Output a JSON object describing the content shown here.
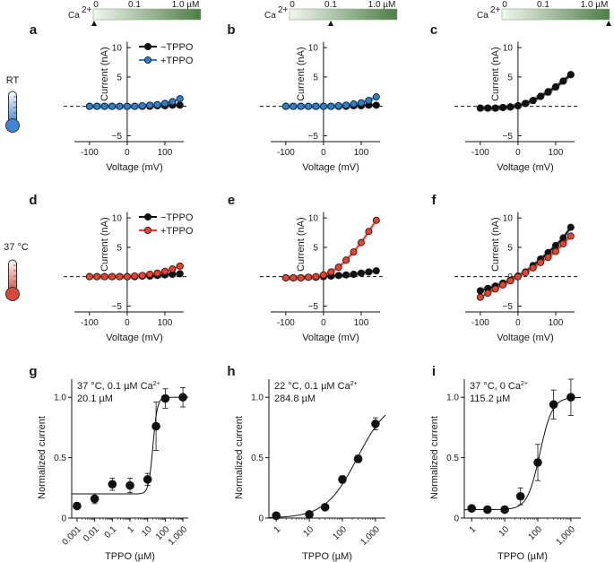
{
  "colors": {
    "tppo_minus": "#111111",
    "tppo_plus_rt": "#2f7fc8",
    "tppo_plus_37": "#e5432f",
    "ca_bar_light": "#f2f7f0",
    "ca_bar_dark": "#4d7d45",
    "thermo_rt": "#3f86d4",
    "thermo_37": "#d64a3b"
  },
  "ca_bars": [
    {
      "label": "Ca",
      "sup": "2+",
      "ticks": [
        "0",
        "0.1",
        "1.0 µM"
      ],
      "marker": "0"
    },
    {
      "label": "Ca",
      "sup": "2+",
      "ticks": [
        "0",
        "0.1",
        "1.0 µM"
      ],
      "marker": "0.1"
    },
    {
      "label": "Ca",
      "sup": "2+",
      "ticks": [
        "0",
        "0.1",
        "1.0 µM"
      ],
      "marker": "1.0 µM"
    }
  ],
  "row_labels": {
    "rt": "RT",
    "hot": "37 °C",
    "icon_rt": "thermometer-blue",
    "icon_hot": "thermometer-red"
  },
  "legend": {
    "minus": "−TPPO",
    "plus": "+TPPO"
  },
  "chart_data": [
    {
      "panel": "a",
      "type": "line",
      "xlabel": "Voltage (mV)",
      "ylabel": "Current (nA)",
      "xlim": [
        -140,
        150
      ],
      "ylim": [
        -6,
        12
      ],
      "xticks": [
        "-100",
        "0",
        "100"
      ],
      "yticks": [
        "−5",
        "0",
        "5",
        "10"
      ],
      "zero_dashed": true,
      "x": [
        -100,
        -80,
        -60,
        -40,
        -20,
        0,
        20,
        40,
        60,
        80,
        100,
        120,
        140
      ],
      "series": [
        {
          "name": "−TPPO",
          "values": [
            0,
            0,
            0,
            0,
            0,
            0,
            0,
            0,
            0,
            0.1,
            0.1,
            0.2,
            0.2
          ]
        },
        {
          "name": "+TPPO",
          "values": [
            0,
            0,
            0,
            0,
            0,
            0,
            0,
            0.1,
            0.2,
            0.3,
            0.5,
            0.8,
            1.3
          ]
        }
      ]
    },
    {
      "panel": "b",
      "type": "line",
      "xlabel": "Voltage (mV)",
      "ylabel": "Current (nA)",
      "xlim": [
        -140,
        150
      ],
      "ylim": [
        -6,
        12
      ],
      "xticks": [
        "-100",
        "0",
        "100"
      ],
      "yticks": [
        "−5",
        "0",
        "5",
        "10"
      ],
      "zero_dashed": true,
      "x": [
        -100,
        -80,
        -60,
        -40,
        -20,
        0,
        20,
        40,
        60,
        80,
        100,
        120,
        140
      ],
      "series": [
        {
          "name": "−TPPO",
          "values": [
            0,
            0,
            0,
            0,
            0,
            0,
            0,
            0,
            0,
            0.1,
            0.1,
            0.2,
            0.2
          ]
        },
        {
          "name": "+TPPO",
          "values": [
            0,
            0,
            0,
            0,
            0,
            0,
            0,
            0.1,
            0.2,
            0.4,
            0.6,
            1.0,
            1.6
          ]
        }
      ]
    },
    {
      "panel": "c",
      "type": "line",
      "xlabel": "Voltage (mV)",
      "ylabel": "Current (nA)",
      "xlim": [
        -140,
        150
      ],
      "ylim": [
        -6,
        12
      ],
      "xticks": [
        "-100",
        "0",
        "100"
      ],
      "yticks": [
        "−5",
        "0",
        "5",
        "10"
      ],
      "zero_dashed": true,
      "x": [
        -100,
        -80,
        -60,
        -40,
        -20,
        0,
        20,
        40,
        60,
        80,
        100,
        120,
        140
      ],
      "series": [
        {
          "name": "−TPPO",
          "values": [
            -0.3,
            -0.3,
            -0.3,
            -0.2,
            -0.1,
            0.1,
            0.5,
            1.0,
            1.7,
            2.5,
            3.3,
            4.3,
            5.4
          ]
        },
        {
          "name": "+TPPO",
          "values": [
            -0.3,
            -0.3,
            -0.3,
            -0.2,
            -0.1,
            0.1,
            0.5,
            1.0,
            1.7,
            2.4,
            3.3,
            4.3,
            5.4
          ]
        }
      ]
    },
    {
      "panel": "d",
      "type": "line",
      "xlabel": "Voltage (mV)",
      "ylabel": "Current (nA)",
      "xlim": [
        -140,
        150
      ],
      "ylim": [
        -6,
        12
      ],
      "xticks": [
        "-100",
        "0",
        "100"
      ],
      "yticks": [
        "−5",
        "0",
        "5",
        "10"
      ],
      "zero_dashed": true,
      "x": [
        -100,
        -80,
        -60,
        -40,
        -20,
        0,
        20,
        40,
        60,
        80,
        100,
        120,
        140
      ],
      "series": [
        {
          "name": "−TPPO",
          "values": [
            0,
            0,
            0,
            0,
            0,
            0,
            0,
            0.1,
            0.1,
            0.2,
            0.3,
            0.4,
            0.5
          ]
        },
        {
          "name": "+TPPO",
          "values": [
            0,
            0,
            0,
            0,
            0,
            0,
            0.1,
            0.2,
            0.4,
            0.6,
            0.9,
            1.3,
            1.8
          ]
        }
      ]
    },
    {
      "panel": "e",
      "type": "line",
      "xlabel": "Voltage (mV)",
      "ylabel": "Current (nA)",
      "xlim": [
        -140,
        150
      ],
      "ylim": [
        -6,
        12
      ],
      "xticks": [
        "-100",
        "0",
        "100"
      ],
      "yticks": [
        "−5",
        "0",
        "5",
        "10"
      ],
      "zero_dashed": true,
      "x": [
        -100,
        -80,
        -60,
        -40,
        -20,
        0,
        20,
        40,
        60,
        80,
        100,
        120,
        140
      ],
      "series": [
        {
          "name": "−TPPO",
          "values": [
            -0.2,
            -0.2,
            -0.2,
            -0.1,
            -0.1,
            0,
            0.1,
            0.2,
            0.3,
            0.4,
            0.6,
            0.8,
            1.0
          ]
        },
        {
          "name": "+TPPO",
          "values": [
            -0.2,
            -0.2,
            -0.2,
            -0.1,
            0,
            0.3,
            0.8,
            1.6,
            2.8,
            4.2,
            5.8,
            7.7,
            9.6
          ]
        }
      ]
    },
    {
      "panel": "f",
      "type": "line",
      "xlabel": "Voltage (mV)",
      "ylabel": "Current (nA)",
      "xlim": [
        -140,
        150
      ],
      "ylim": [
        -6,
        12
      ],
      "xticks": [
        "-100",
        "0",
        "100"
      ],
      "yticks": [
        "−5",
        "0",
        "5",
        "10"
      ],
      "zero_dashed": true,
      "x": [
        -100,
        -80,
        -60,
        -40,
        -20,
        0,
        20,
        40,
        60,
        80,
        100,
        120,
        140
      ],
      "series": [
        {
          "name": "−TPPO",
          "values": [
            -2.4,
            -2.0,
            -1.6,
            -1.1,
            -0.6,
            0.1,
            0.8,
            1.9,
            3.0,
            4.1,
            5.3,
            6.6,
            8.4
          ]
        },
        {
          "name": "+TPPO",
          "values": [
            -3.5,
            -2.8,
            -2.1,
            -1.4,
            -0.7,
            0,
            0.7,
            1.5,
            2.4,
            3.3,
            4.3,
            5.6,
            6.9
          ]
        }
      ]
    },
    {
      "panel": "g",
      "type": "scatter",
      "xlabel": "TPPO (µM)",
      "ylabel": "Normalized current",
      "xscale": "log",
      "xlim": [
        0.0005,
        2000
      ],
      "ylim": [
        0,
        1.15
      ],
      "xticks": [
        "0.001",
        "0.01",
        "0.1",
        "1",
        "10",
        "100",
        "1,000"
      ],
      "yticks": [
        "0",
        "0.5",
        "1.0"
      ],
      "annotation_lines": [
        "37 °C, 0.1 µM Ca",
        "20.1 µM"
      ],
      "annotation_sup": "2+",
      "x": [
        0.001,
        0.01,
        0.1,
        1,
        10,
        30,
        100,
        1000
      ],
      "y": [
        0.1,
        0.16,
        0.28,
        0.27,
        0.32,
        0.76,
        0.99,
        1.0
      ],
      "err": [
        0.02,
        0.04,
        0.05,
        0.06,
        0.05,
        0.2,
        0.08,
        0.08
      ],
      "fit": {
        "bottom": 0.2,
        "top": 1.0,
        "ec50": 20.1,
        "hill": 3.5
      }
    },
    {
      "panel": "h",
      "type": "scatter",
      "xlabel": "TPPO (µM)",
      "ylabel": "Normalized current",
      "xscale": "log",
      "xlim": [
        0.6,
        2000
      ],
      "ylim": [
        0,
        1.15
      ],
      "xticks": [
        "1",
        "10",
        "100",
        "1,000"
      ],
      "yticks": [
        "0",
        "0.5",
        "1.0"
      ],
      "annotation_lines": [
        "22 °C, 0.1 µM Ca",
        "284.8 µM"
      ],
      "annotation_sup": "2+",
      "x": [
        1,
        10,
        30,
        100,
        300,
        1000
      ],
      "y": [
        0.02,
        0.03,
        0.09,
        0.32,
        0.49,
        0.78
      ],
      "err": [
        0.01,
        0.01,
        0.02,
        0.03,
        0.03,
        0.05
      ],
      "fit": {
        "bottom": 0.0,
        "top": 1.0,
        "ec50": 284.8,
        "hill": 0.9
      }
    },
    {
      "panel": "i",
      "type": "scatter",
      "xlabel": "TPPO (µM)",
      "ylabel": "Normalized current",
      "xscale": "log",
      "xlim": [
        0.6,
        2000
      ],
      "ylim": [
        0,
        1.15
      ],
      "xticks": [
        "1",
        "10",
        "100",
        "1,000"
      ],
      "yticks": [
        "0",
        "0.5",
        "1.0"
      ],
      "annotation_lines": [
        "37 °C, 0 Ca",
        "115.2 µM"
      ],
      "annotation_sup": "2+",
      "x": [
        1,
        3,
        10,
        30,
        100,
        300,
        1000
      ],
      "y": [
        0.08,
        0.07,
        0.07,
        0.18,
        0.46,
        0.94,
        1.0
      ],
      "err": [
        0.01,
        0.01,
        0.01,
        0.07,
        0.15,
        0.12,
        0.15
      ],
      "fit": {
        "bottom": 0.07,
        "top": 1.0,
        "ec50": 115.2,
        "hill": 2.3
      }
    }
  ]
}
